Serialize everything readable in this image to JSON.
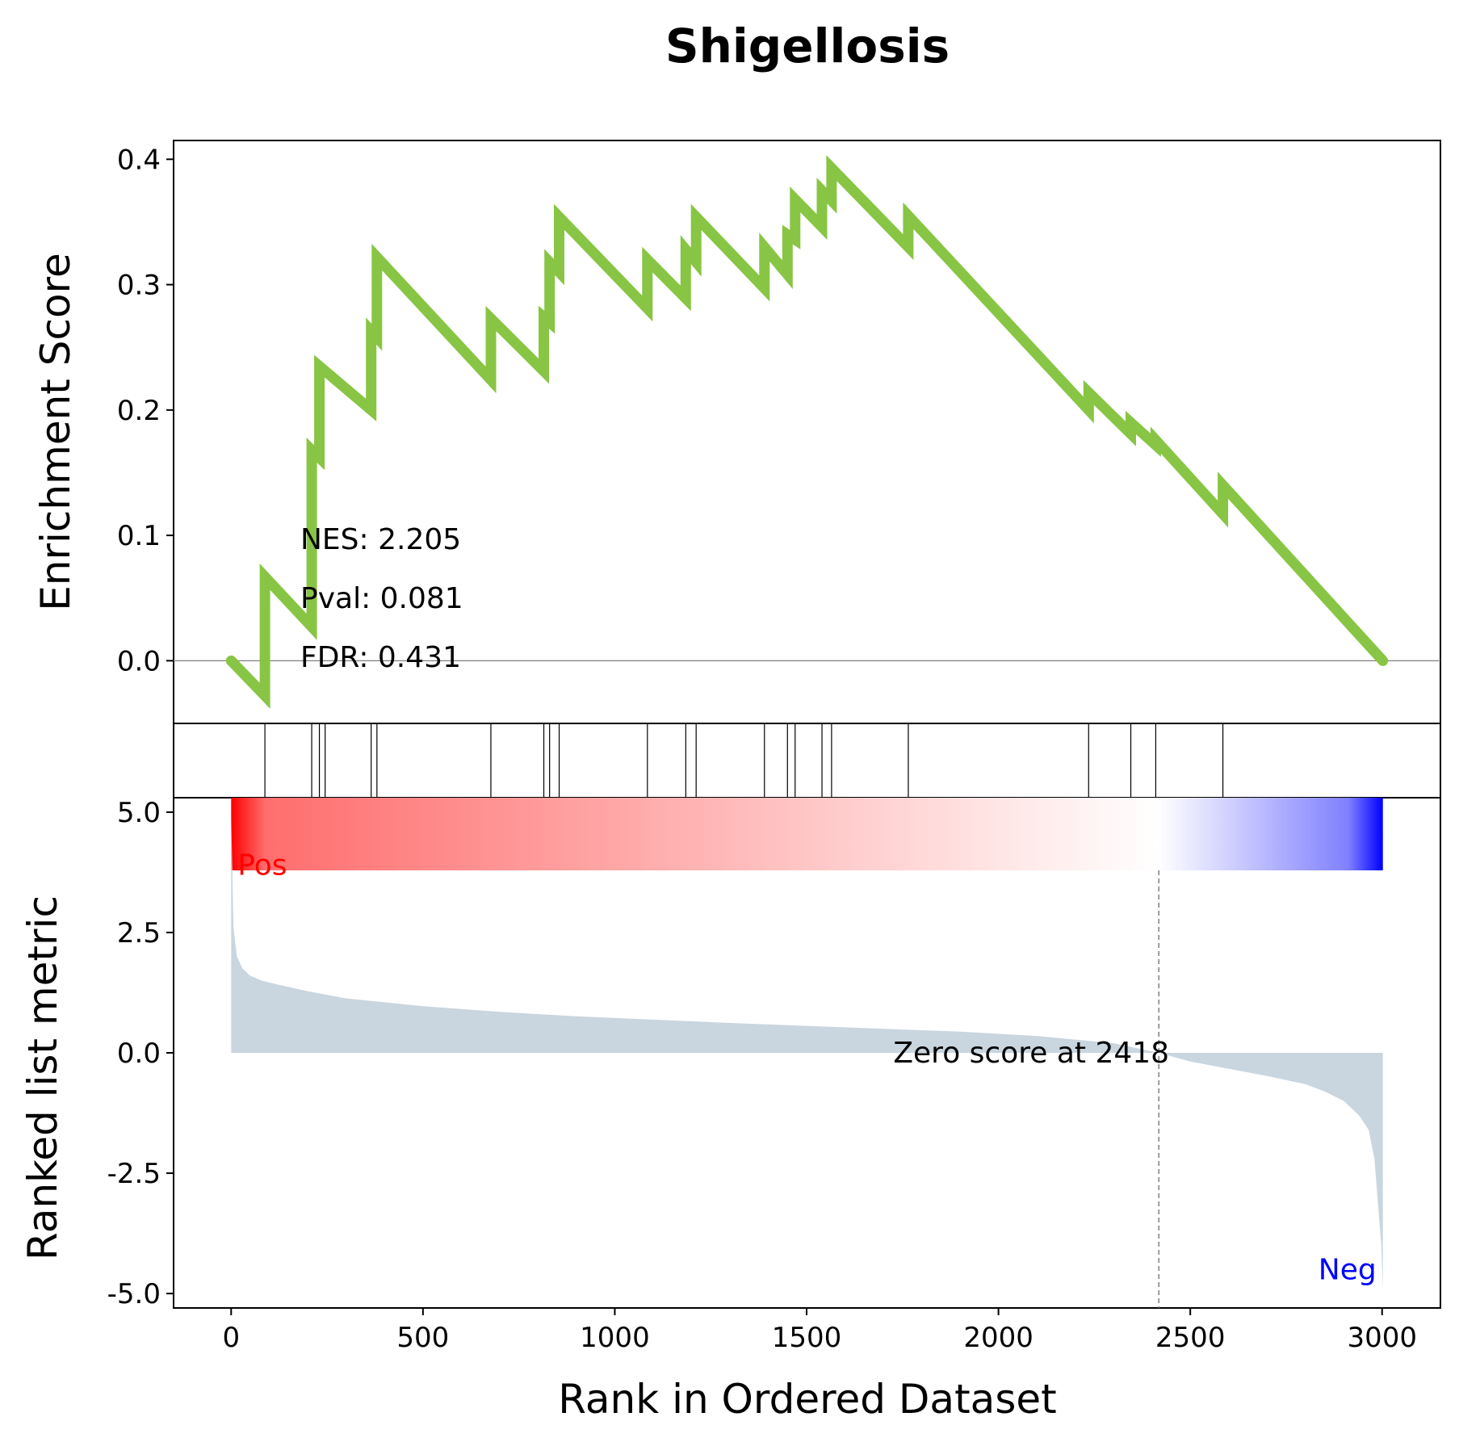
{
  "chart_data": {
    "type": "line",
    "title": "Shigellosis",
    "colors": {
      "es_line": "#88c544",
      "zero_line": "#808080",
      "metric_fill": "#c9d5df",
      "hits": "#000000",
      "pos_label": "#ff0000",
      "neg_label": "#0000ff",
      "gradient_pos": "#ff0000",
      "gradient_neg": "#0000ff",
      "gradient_mid": "#ffffff"
    },
    "enrichment_panel": {
      "ylabel": "Enrichment Score",
      "ylim": [
        -0.05,
        0.415
      ],
      "yticks": [
        0.0,
        0.1,
        0.2,
        0.3,
        0.4
      ],
      "ytick_labels": [
        "0.0",
        "0.1",
        "0.2",
        "0.3",
        "0.4"
      ],
      "stats": {
        "nes": "NES: 2.205",
        "pval": "Pval: 0.081",
        "fdr": "FDR: 0.431"
      },
      "es_points": [
        [
          0,
          0.0
        ],
        [
          88,
          -0.028
        ],
        [
          88,
          0.067
        ],
        [
          210,
          0.027
        ],
        [
          210,
          0.168
        ],
        [
          230,
          0.162
        ],
        [
          230,
          0.235
        ],
        [
          365,
          0.2
        ],
        [
          365,
          0.263
        ],
        [
          380,
          0.258
        ],
        [
          380,
          0.322
        ],
        [
          677,
          0.224
        ],
        [
          677,
          0.273
        ],
        [
          815,
          0.231
        ],
        [
          815,
          0.274
        ],
        [
          830,
          0.27
        ],
        [
          830,
          0.318
        ],
        [
          855,
          0.31
        ],
        [
          855,
          0.354
        ],
        [
          1085,
          0.281
        ],
        [
          1085,
          0.32
        ],
        [
          1185,
          0.289
        ],
        [
          1185,
          0.328
        ],
        [
          1212,
          0.318
        ],
        [
          1212,
          0.354
        ],
        [
          1390,
          0.297
        ],
        [
          1390,
          0.33
        ],
        [
          1450,
          0.308
        ],
        [
          1450,
          0.34
        ],
        [
          1470,
          0.336
        ],
        [
          1470,
          0.368
        ],
        [
          1540,
          0.346
        ],
        [
          1540,
          0.375
        ],
        [
          1565,
          0.367
        ],
        [
          1565,
          0.393
        ],
        [
          1765,
          0.33
        ],
        [
          1765,
          0.355
        ],
        [
          2235,
          0.2
        ],
        [
          2235,
          0.214
        ],
        [
          2345,
          0.181
        ],
        [
          2345,
          0.19
        ],
        [
          2410,
          0.172
        ],
        [
          2410,
          0.176
        ],
        [
          2585,
          0.117
        ],
        [
          2585,
          0.14
        ],
        [
          3002,
          0.0
        ]
      ]
    },
    "hits_panel": {
      "hit_positions": [
        88,
        210,
        230,
        245,
        365,
        380,
        677,
        815,
        830,
        855,
        1085,
        1185,
        1212,
        1390,
        1450,
        1470,
        1540,
        1565,
        1765,
        2235,
        2345,
        2410,
        2585
      ]
    },
    "metric_panel": {
      "ylabel": "Ranked list metric",
      "ylim": [
        -5.3,
        5.3
      ],
      "yticks": [
        5.0,
        2.5,
        0.0,
        -2.5,
        -5.0
      ],
      "ytick_labels": [
        "5.0",
        "2.5",
        "0.0",
        "-2.5",
        "-5.0"
      ],
      "pos_label": "Pos",
      "neg_label": "Neg",
      "zero_cross_rank": 2418,
      "zero_label": "Zero score at 2418",
      "metric_curve": [
        [
          0,
          5.0
        ],
        [
          6,
          2.6
        ],
        [
          15,
          2.0
        ],
        [
          30,
          1.75
        ],
        [
          50,
          1.6
        ],
        [
          80,
          1.5
        ],
        [
          120,
          1.42
        ],
        [
          200,
          1.28
        ],
        [
          300,
          1.13
        ],
        [
          400,
          1.05
        ],
        [
          500,
          0.97
        ],
        [
          700,
          0.85
        ],
        [
          900,
          0.76
        ],
        [
          1100,
          0.69
        ],
        [
          1300,
          0.62
        ],
        [
          1500,
          0.56
        ],
        [
          1700,
          0.5
        ],
        [
          1900,
          0.44
        ],
        [
          2100,
          0.35
        ],
        [
          2300,
          0.2
        ],
        [
          2418,
          0.0
        ],
        [
          2500,
          -0.18
        ],
        [
          2600,
          -0.33
        ],
        [
          2700,
          -0.48
        ],
        [
          2800,
          -0.65
        ],
        [
          2850,
          -0.8
        ],
        [
          2900,
          -1.0
        ],
        [
          2940,
          -1.3
        ],
        [
          2965,
          -1.6
        ],
        [
          2980,
          -2.2
        ],
        [
          2990,
          -3.2
        ],
        [
          2998,
          -4.0
        ],
        [
          3002,
          -4.9
        ]
      ]
    },
    "xaxis": {
      "xlabel": "Rank in Ordered Dataset",
      "xlim": [
        -150,
        3152
      ],
      "xticks": [
        0,
        500,
        1000,
        1500,
        2000,
        2500,
        3000
      ],
      "xtick_labels": [
        "0",
        "500",
        "1000",
        "1500",
        "2000",
        "2500",
        "3000"
      ],
      "n_genes": 3002
    }
  }
}
